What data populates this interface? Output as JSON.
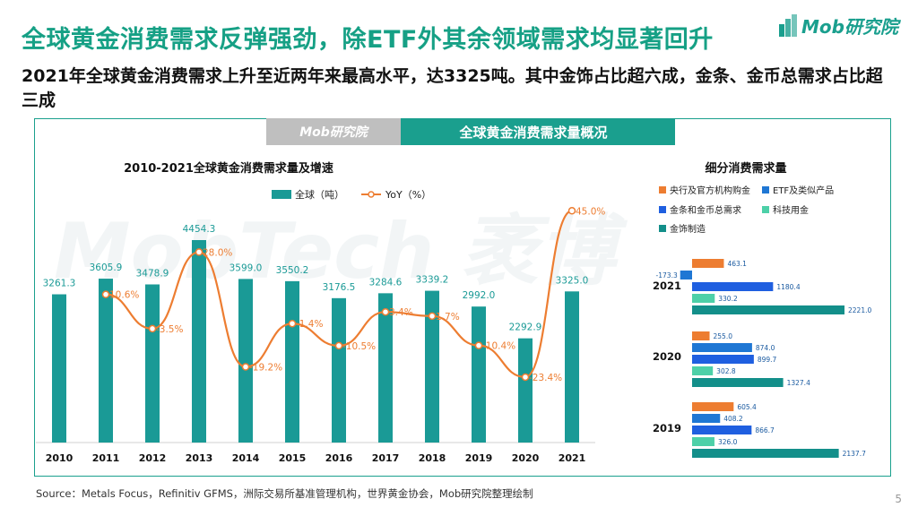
{
  "title": "全球黄金消费需求反弹强劲，除ETF外其余领域需求均显著回升",
  "subtitle": "2021年全球黄金消费需求上升至近两年来最高水平，达3325吨。其中金饰占比超六成，金条、金币总需求占比超三成",
  "logo_text": "Mob研究院",
  "banner": {
    "logo_text": "Mob研究院",
    "title": "全球黄金消费需求量概况"
  },
  "watermark": "MobTech 袤博",
  "footer": "Source：Metals Focus，Refinitiv GFMS，洲际交易所基准管理机构，世界黄金协会，Mob研究院整理绘制",
  "page_number": "5",
  "colors": {
    "brand": "#1a9f8e",
    "bar": "#1a9a96",
    "line": "#ed7d31",
    "central": "#ed7d31",
    "etf": "#1f77d4",
    "bars_coins": "#1f5fe0",
    "tech": "#4dd0a8",
    "jewel": "#138f8a"
  },
  "chart_data": [
    {
      "type": "bar+line",
      "title": "2010-2021全球黄金消费需求量及增速",
      "categories": [
        "2010",
        "2011",
        "2012",
        "2013",
        "2014",
        "2015",
        "2016",
        "2017",
        "2018",
        "2019",
        "2020",
        "2021"
      ],
      "series": [
        {
          "name": "全球（吨）",
          "type": "bar",
          "values": [
            3261.3,
            3605.9,
            3478.9,
            4454.3,
            3599.0,
            3550.2,
            3176.5,
            3284.6,
            3339.2,
            2992.0,
            2292.9,
            3325.0
          ]
        },
        {
          "name": "YoY（%）",
          "type": "line",
          "values": [
            null,
            10.6,
            -3.5,
            28.0,
            -19.2,
            -1.4,
            -10.5,
            3.4,
            1.7,
            -10.4,
            -23.4,
            45.0
          ]
        }
      ],
      "value_labels": [
        "3261.3",
        "3605.9",
        "3478.9",
        "4454.3",
        "3599.0",
        "3550.2",
        "3176.5",
        "3284.6",
        "3339.2",
        "2992.0",
        "2292.9",
        "3325.0"
      ],
      "line_labels": [
        "",
        "10.6%",
        "-3.5%",
        "28.0%",
        "-19.2%",
        "-1.4%",
        "-10.5%",
        "3.4%",
        "1.7%",
        "-10.4%",
        "-23.4%",
        "45.0%"
      ],
      "legend_position": "top"
    },
    {
      "type": "bar",
      "orientation": "horizontal",
      "title": "细分消费需求量",
      "groups": [
        "2021",
        "2020",
        "2019"
      ],
      "series": [
        {
          "name": "央行及官方机构购金",
          "values": [
            463.1,
            255.0,
            605.4
          ]
        },
        {
          "name": "ETF及类似产品",
          "values": [
            -173.3,
            874.0,
            408.2
          ]
        },
        {
          "name": "金条和金币总需求",
          "values": [
            1180.4,
            899.7,
            866.7
          ]
        },
        {
          "name": "科技用金",
          "values": [
            330.2,
            302.8,
            326.0
          ]
        },
        {
          "name": "金饰制造",
          "values": [
            2221.0,
            1327.4,
            2137.7
          ]
        }
      ],
      "value_labels": [
        [
          "463.1",
          "-173.3",
          "1180.4",
          "330.2",
          "2221.0"
        ],
        [
          "255.0",
          "874.0",
          "899.7",
          "302.8",
          "1327.4"
        ],
        [
          "605.4",
          "408.2",
          "866.7",
          "326.0",
          "2137.7"
        ]
      ],
      "legend_position": "top"
    }
  ]
}
